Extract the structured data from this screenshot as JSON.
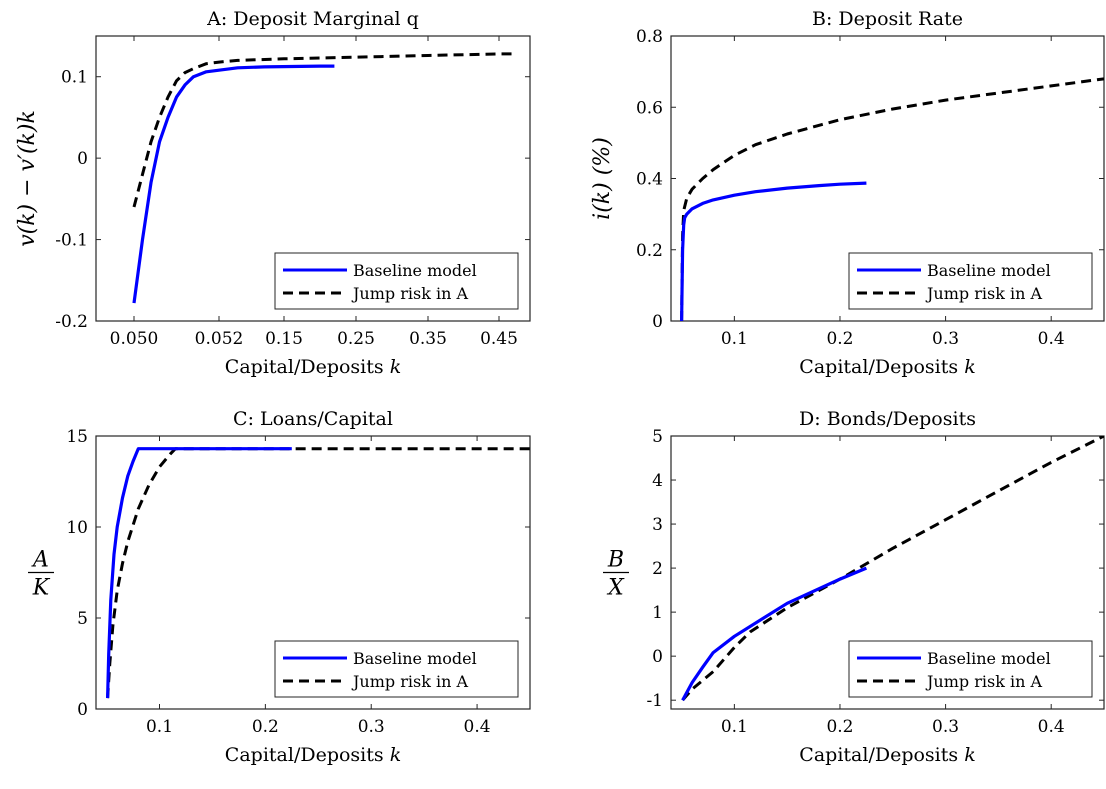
{
  "chart_data": [
    {
      "type": "line",
      "title": "A: Deposit Marginal q",
      "xlabel": "Capital/Deposits k",
      "ylabel": "v(k) − v′(k)k",
      "x_tick_labels": [
        "0.050",
        "0.052",
        "0.15",
        "0.25",
        "0.35",
        "0.45"
      ],
      "y_tick_labels": [
        "-0.2",
        "-0.1",
        "0",
        "0.1"
      ],
      "ylim": [
        -0.2,
        0.15
      ],
      "legend_position": "bottom-right",
      "grid": false,
      "series": [
        {
          "name": "Baseline model",
          "style": "solid",
          "color": "#0000ff",
          "points": [
            [
              0.05,
              -0.178
            ],
            [
              0.0502,
              -0.1
            ],
            [
              0.0504,
              -0.03
            ],
            [
              0.0506,
              0.02
            ],
            [
              0.0508,
              0.05
            ],
            [
              0.051,
              0.075
            ],
            [
              0.0512,
              0.09
            ],
            [
              0.0514,
              0.1
            ],
            [
              0.0517,
              0.106
            ],
            [
              0.052,
              0.108
            ],
            [
              0.08,
              0.111
            ],
            [
              0.12,
              0.112
            ],
            [
              0.2,
              0.113
            ],
            [
              0.22,
              0.113
            ]
          ]
        },
        {
          "name": "Jump risk in A",
          "style": "dashed",
          "color": "#000000",
          "points": [
            [
              0.05,
              -0.06
            ],
            [
              0.0502,
              -0.02
            ],
            [
              0.0504,
              0.02
            ],
            [
              0.0506,
              0.05
            ],
            [
              0.0508,
              0.075
            ],
            [
              0.051,
              0.095
            ],
            [
              0.0512,
              0.105
            ],
            [
              0.0514,
              0.11
            ],
            [
              0.0517,
              0.116
            ],
            [
              0.052,
              0.118
            ],
            [
              0.08,
              0.12
            ],
            [
              0.15,
              0.122
            ],
            [
              0.25,
              0.124
            ],
            [
              0.35,
              0.126
            ],
            [
              0.45,
              0.128
            ],
            [
              0.47,
              0.128
            ]
          ]
        }
      ]
    },
    {
      "type": "line",
      "title": "B: Deposit Rate",
      "xlabel": "Capital/Deposits k",
      "ylabel": "i(k) (%)",
      "xlim": [
        0.04,
        0.45
      ],
      "ylim": [
        0,
        0.8
      ],
      "x_ticks": [
        0.1,
        0.2,
        0.3,
        0.4
      ],
      "x_tick_labels": [
        "0.1",
        "0.2",
        "0.3",
        "0.4"
      ],
      "y_ticks": [
        0,
        0.2,
        0.4,
        0.6,
        0.8
      ],
      "y_tick_labels": [
        "0",
        "0.2",
        "0.4",
        "0.6",
        "0.8"
      ],
      "legend_position": "bottom-right",
      "grid": false,
      "series": [
        {
          "name": "Baseline model",
          "style": "solid",
          "color": "#0000ff",
          "x": [
            0.05,
            0.0505,
            0.051,
            0.052,
            0.053,
            0.055,
            0.06,
            0.07,
            0.08,
            0.1,
            0.12,
            0.15,
            0.18,
            0.2,
            0.225
          ],
          "y": [
            0,
            0.1,
            0.2,
            0.27,
            0.29,
            0.3,
            0.315,
            0.33,
            0.34,
            0.353,
            0.363,
            0.373,
            0.38,
            0.384,
            0.387
          ]
        },
        {
          "name": "Jump risk in A",
          "style": "dashed",
          "color": "#000000",
          "x": [
            0.05,
            0.0505,
            0.051,
            0.052,
            0.055,
            0.06,
            0.07,
            0.08,
            0.1,
            0.12,
            0.15,
            0.2,
            0.25,
            0.3,
            0.35,
            0.4,
            0.45
          ],
          "y": [
            0,
            0.12,
            0.24,
            0.31,
            0.345,
            0.37,
            0.4,
            0.425,
            0.465,
            0.495,
            0.525,
            0.565,
            0.595,
            0.62,
            0.64,
            0.66,
            0.68
          ]
        }
      ]
    },
    {
      "type": "line",
      "title": "C: Loans/Capital",
      "xlabel": "Capital/Deposits k",
      "ylabel_num": "A",
      "ylabel_den": "K",
      "xlim": [
        0.04,
        0.45
      ],
      "ylim": [
        0,
        15
      ],
      "x_ticks": [
        0.1,
        0.2,
        0.3,
        0.4
      ],
      "x_tick_labels": [
        "0.1",
        "0.2",
        "0.3",
        "0.4"
      ],
      "y_ticks": [
        0,
        5,
        10,
        15
      ],
      "y_tick_labels": [
        "0",
        "5",
        "10",
        "15"
      ],
      "legend_position": "bottom-right",
      "grid": false,
      "series": [
        {
          "name": "Baseline model",
          "style": "solid",
          "color": "#0000ff",
          "x": [
            0.051,
            0.052,
            0.054,
            0.057,
            0.06,
            0.065,
            0.07,
            0.075,
            0.08,
            0.15,
            0.225
          ],
          "y": [
            0.6,
            3.0,
            6.0,
            8.5,
            10.0,
            11.6,
            12.8,
            13.6,
            14.3,
            14.3,
            14.3
          ]
        },
        {
          "name": "Jump risk in A",
          "style": "dashed",
          "color": "#000000",
          "x": [
            0.051,
            0.053,
            0.056,
            0.06,
            0.065,
            0.07,
            0.08,
            0.09,
            0.1,
            0.11,
            0.115,
            0.2,
            0.3,
            0.45
          ],
          "y": [
            0.6,
            2.5,
            4.6,
            6.5,
            8.0,
            9.2,
            11.0,
            12.3,
            13.3,
            14.0,
            14.3,
            14.3,
            14.3,
            14.3
          ]
        }
      ]
    },
    {
      "type": "line",
      "title": "D: Bonds/Deposits",
      "xlabel": "Capital/Deposits k",
      "ylabel_num": "B",
      "ylabel_den": "X",
      "xlim": [
        0.04,
        0.45
      ],
      "ylim": [
        -1.2,
        5
      ],
      "x_ticks": [
        0.1,
        0.2,
        0.3,
        0.4
      ],
      "x_tick_labels": [
        "0.1",
        "0.2",
        "0.3",
        "0.4"
      ],
      "y_ticks": [
        -1,
        0,
        1,
        2,
        3,
        4,
        5
      ],
      "y_tick_labels": [
        "-1",
        "0",
        "1",
        "2",
        "3",
        "4",
        "5"
      ],
      "legend_position": "bottom-right",
      "grid": false,
      "series": [
        {
          "name": "Baseline model",
          "style": "solid",
          "color": "#0000ff",
          "x": [
            0.051,
            0.06,
            0.07,
            0.08,
            0.1,
            0.15,
            0.2,
            0.225
          ],
          "y": [
            -1.0,
            -0.6,
            -0.25,
            0.08,
            0.45,
            1.2,
            1.75,
            2.0
          ]
        },
        {
          "name": "Jump risk in A",
          "style": "dashed",
          "color": "#000000",
          "x": [
            0.051,
            0.06,
            0.08,
            0.1,
            0.115,
            0.15,
            0.2,
            0.25,
            0.3,
            0.35,
            0.4,
            0.45
          ],
          "y": [
            -1.0,
            -0.75,
            -0.35,
            0.2,
            0.55,
            1.1,
            1.75,
            2.45,
            3.1,
            3.75,
            4.4,
            5.0
          ]
        }
      ]
    }
  ]
}
